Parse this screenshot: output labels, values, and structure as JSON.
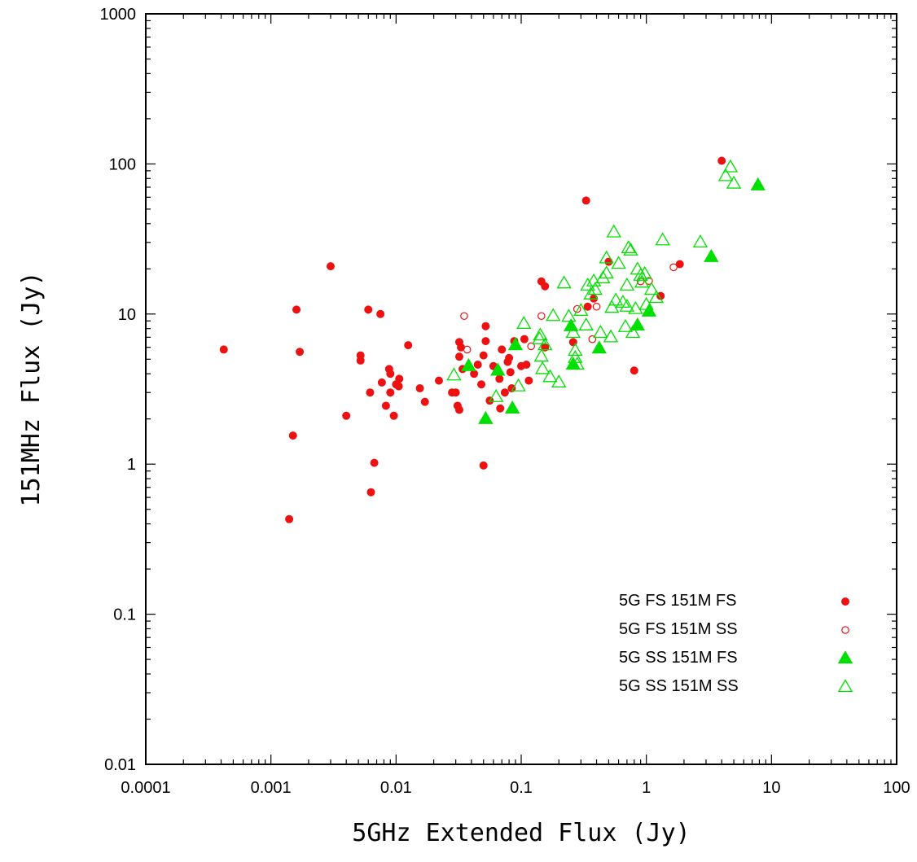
{
  "chart_data": {
    "type": "scatter",
    "xlabel": "5GHz Extended Flux (Jy)",
    "ylabel": "151MHz Flux (Jy)",
    "xscale": "log",
    "yscale": "log",
    "xlim": [
      0.0001,
      100
    ],
    "ylim": [
      0.01,
      1000
    ],
    "x_ticks": [
      {
        "value": 0.0001,
        "label": "0.0001"
      },
      {
        "value": 0.001,
        "label": "0.001"
      },
      {
        "value": 0.01,
        "label": "0.01"
      },
      {
        "value": 0.1,
        "label": "0.1"
      },
      {
        "value": 1,
        "label": "1"
      },
      {
        "value": 10,
        "label": "10"
      },
      {
        "value": 100,
        "label": "100"
      }
    ],
    "y_ticks": [
      {
        "value": 0.01,
        "label": "0.01"
      },
      {
        "value": 0.1,
        "label": "0.1"
      },
      {
        "value": 1,
        "label": "1"
      },
      {
        "value": 10,
        "label": "10"
      },
      {
        "value": 100,
        "label": "100"
      },
      {
        "value": 1000,
        "label": "1000"
      }
    ],
    "legend_position": "bottom-right",
    "series": [
      {
        "name": "5G FS  151M FS",
        "marker": "filled-circle",
        "color": "#ee1111",
        "points": [
          [
            0.00042,
            5.8
          ],
          [
            0.0014,
            0.43
          ],
          [
            0.0015,
            1.55
          ],
          [
            0.0016,
            10.7
          ],
          [
            0.0017,
            5.6
          ],
          [
            0.003,
            20.8
          ],
          [
            0.004,
            2.1
          ],
          [
            0.0052,
            5.3
          ],
          [
            0.0052,
            4.9
          ],
          [
            0.006,
            10.7
          ],
          [
            0.0062,
            3.0
          ],
          [
            0.0063,
            0.65
          ],
          [
            0.0067,
            1.02
          ],
          [
            0.0075,
            10.0
          ],
          [
            0.0077,
            3.5
          ],
          [
            0.0083,
            2.45
          ],
          [
            0.0088,
            4.3
          ],
          [
            0.009,
            4.0
          ],
          [
            0.009,
            3.0
          ],
          [
            0.0096,
            2.1
          ],
          [
            0.01,
            3.4
          ],
          [
            0.0105,
            3.3
          ],
          [
            0.0106,
            3.7
          ],
          [
            0.0125,
            6.2
          ],
          [
            0.0155,
            3.2
          ],
          [
            0.017,
            2.6
          ],
          [
            0.022,
            3.6
          ],
          [
            0.028,
            3.0
          ],
          [
            0.03,
            3.0
          ],
          [
            0.031,
            2.45
          ],
          [
            0.032,
            6.5
          ],
          [
            0.032,
            5.2
          ],
          [
            0.032,
            2.3
          ],
          [
            0.033,
            6.0
          ],
          [
            0.034,
            4.3
          ],
          [
            0.042,
            4.0
          ],
          [
            0.045,
            4.6
          ],
          [
            0.048,
            3.4
          ],
          [
            0.05,
            5.3
          ],
          [
            0.05,
            0.98
          ],
          [
            0.052,
            8.3
          ],
          [
            0.052,
            6.6
          ],
          [
            0.056,
            2.65
          ],
          [
            0.06,
            4.5
          ],
          [
            0.067,
            3.7
          ],
          [
            0.068,
            2.35
          ],
          [
            0.07,
            5.8
          ],
          [
            0.074,
            3.0
          ],
          [
            0.078,
            4.8
          ],
          [
            0.08,
            5.1
          ],
          [
            0.082,
            4.1
          ],
          [
            0.084,
            3.2
          ],
          [
            0.088,
            6.6
          ],
          [
            0.1,
            4.5
          ],
          [
            0.106,
            6.8
          ],
          [
            0.11,
            4.6
          ],
          [
            0.115,
            3.6
          ],
          [
            0.145,
            16.5
          ],
          [
            0.155,
            6.0
          ],
          [
            0.155,
            15.3
          ],
          [
            0.26,
            6.5
          ],
          [
            0.33,
            57
          ],
          [
            0.34,
            11.2
          ],
          [
            0.38,
            12.7
          ],
          [
            0.5,
            22.3
          ],
          [
            0.8,
            4.2
          ],
          [
            1.3,
            13.2
          ],
          [
            1.85,
            21.5
          ],
          [
            4.0,
            105
          ]
        ]
      },
      {
        "name": "5G FS  151M SS",
        "marker": "open-circle",
        "color": "#ee1111",
        "points": [
          [
            0.035,
            9.7
          ],
          [
            0.037,
            5.8
          ],
          [
            0.12,
            6.1
          ],
          [
            0.145,
            9.7
          ],
          [
            0.28,
            10.8
          ],
          [
            0.37,
            6.8
          ],
          [
            0.4,
            11.2
          ],
          [
            0.9,
            16.5
          ],
          [
            1.05,
            16.6
          ],
          [
            1.65,
            20.5
          ]
        ]
      },
      {
        "name": "5G SS  151M FS",
        "marker": "filled-triangle",
        "color": "#00e000",
        "points": [
          [
            0.038,
            4.5
          ],
          [
            0.052,
            2.0
          ],
          [
            0.065,
            4.2
          ],
          [
            0.085,
            2.35
          ],
          [
            0.09,
            6.2
          ],
          [
            0.25,
            8.3
          ],
          [
            0.26,
            4.6
          ],
          [
            0.42,
            5.9
          ],
          [
            0.85,
            8.4
          ],
          [
            1.05,
            10.4
          ],
          [
            3.3,
            24.0
          ],
          [
            7.8,
            72
          ]
        ]
      },
      {
        "name": "5G SS  151M SS",
        "marker": "open-triangle",
        "color": "#00e000",
        "points": [
          [
            0.029,
            3.9
          ],
          [
            0.063,
            2.8
          ],
          [
            0.095,
            3.3
          ],
          [
            0.105,
            8.6
          ],
          [
            0.14,
            6.8
          ],
          [
            0.142,
            7.2
          ],
          [
            0.145,
            5.2
          ],
          [
            0.148,
            4.3
          ],
          [
            0.155,
            6.2
          ],
          [
            0.17,
            3.8
          ],
          [
            0.18,
            9.7
          ],
          [
            0.2,
            3.5
          ],
          [
            0.22,
            16.0
          ],
          [
            0.24,
            9.6
          ],
          [
            0.26,
            7.5
          ],
          [
            0.27,
            5.1
          ],
          [
            0.27,
            5.7
          ],
          [
            0.28,
            4.6
          ],
          [
            0.3,
            10.5
          ],
          [
            0.33,
            8.4
          ],
          [
            0.34,
            15.5
          ],
          [
            0.36,
            13.5
          ],
          [
            0.38,
            16.5
          ],
          [
            0.39,
            14.5
          ],
          [
            0.43,
            7.5
          ],
          [
            0.45,
            17.3
          ],
          [
            0.48,
            18.6
          ],
          [
            0.48,
            23.5
          ],
          [
            0.52,
            7.0
          ],
          [
            0.53,
            11.0
          ],
          [
            0.55,
            35
          ],
          [
            0.57,
            12.3
          ],
          [
            0.6,
            21.6
          ],
          [
            0.65,
            11.9
          ],
          [
            0.68,
            8.2
          ],
          [
            0.7,
            11.2
          ],
          [
            0.7,
            15.5
          ],
          [
            0.72,
            27.5
          ],
          [
            0.75,
            26.5
          ],
          [
            0.78,
            7.5
          ],
          [
            0.82,
            10.8
          ],
          [
            0.85,
            19.8
          ],
          [
            0.9,
            18.0
          ],
          [
            0.92,
            16.2
          ],
          [
            0.97,
            18.5
          ],
          [
            1.0,
            11.5
          ],
          [
            1.1,
            14.5
          ],
          [
            1.2,
            12.8
          ],
          [
            1.35,
            31
          ],
          [
            2.7,
            30
          ],
          [
            4.3,
            83
          ],
          [
            4.7,
            95
          ],
          [
            5.0,
            74
          ]
        ]
      }
    ]
  }
}
